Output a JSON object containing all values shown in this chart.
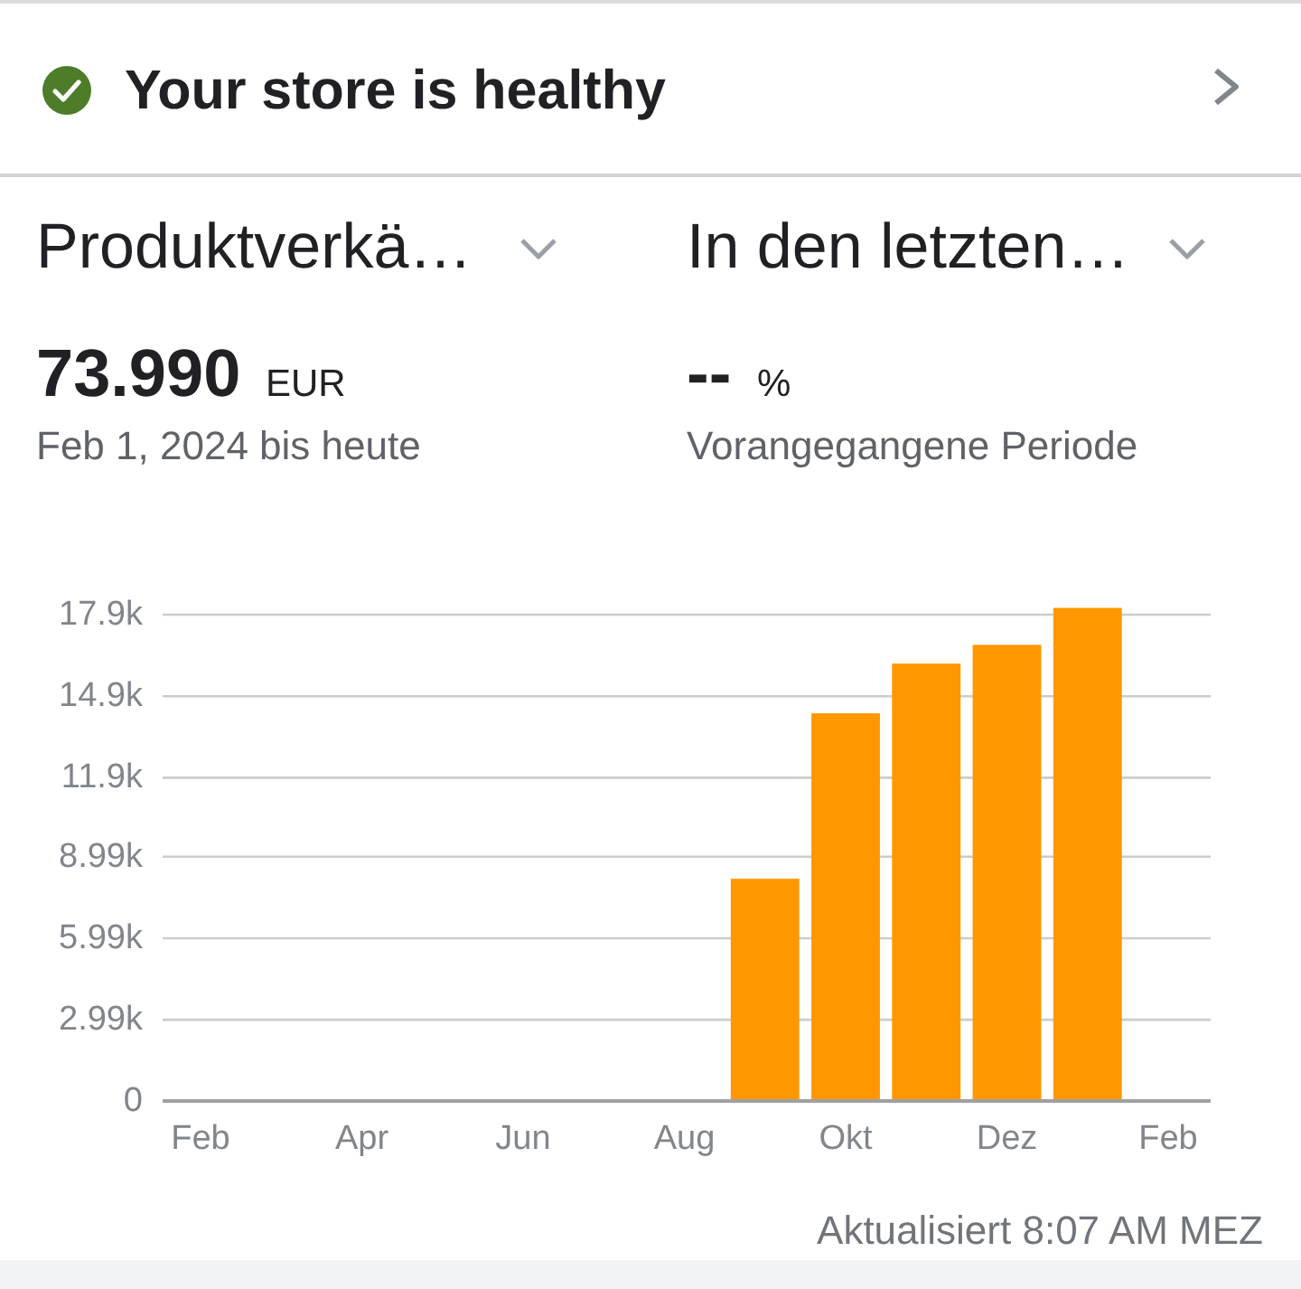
{
  "chart_data": {
    "type": "bar",
    "title": "Produktverkä…",
    "annotations": [
      "Your store is healthy",
      "In den letzten…",
      "73.990",
      "EUR",
      "--",
      "%",
      "Feb 1, 2024 bis heute",
      "Vorangegangene Periode",
      "Aktualisiert 8:07 AM MEZ"
    ],
    "categories": [
      "Feb",
      null,
      "Apr",
      null,
      "Jun",
      null,
      "Aug",
      null,
      "Okt",
      null,
      "Dez",
      null,
      "Feb"
    ],
    "values": [
      0,
      0,
      0,
      0,
      0,
      0,
      0,
      8180,
      14270,
      16100,
      16790,
      18150,
      null
    ],
    "color": "#ff9800",
    "ylim": [
      0,
      18300
    ],
    "yticks": [
      0,
      {
        "value": 2990,
        "label": "2.99k"
      },
      {
        "value": 5990,
        "label": "5.99k"
      },
      {
        "value": 8990,
        "label": "8.99k"
      },
      {
        "value": 11900,
        "label": "11.9k"
      },
      {
        "value": 14900,
        "label": "14.9k"
      },
      {
        "value": 17900,
        "label": "17.9k"
      }
    ],
    "grid": "y"
  }
}
